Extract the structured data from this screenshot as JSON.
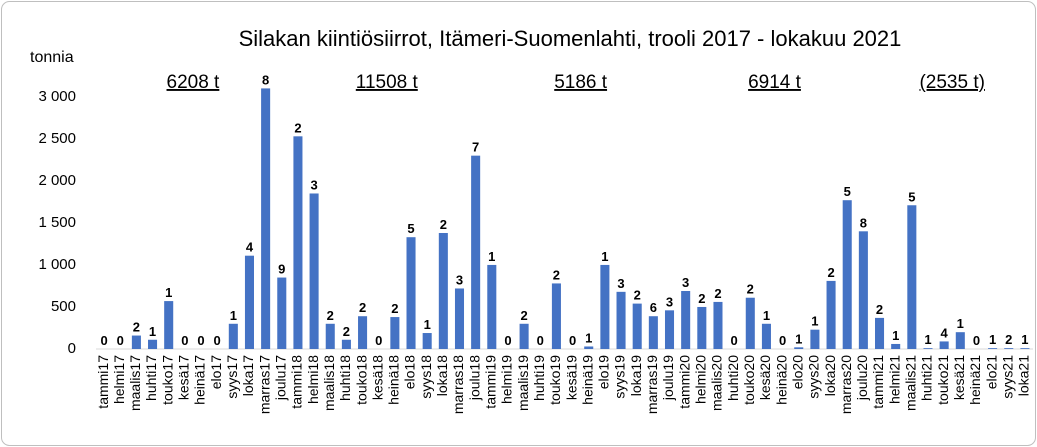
{
  "chart_data": {
    "type": "bar",
    "title": "Silakan kiintiösiirrot, Itämeri-Suomenlahti, trooli 2017 - lokakuu 2021",
    "y_label": "tonnia",
    "color": "#4472c4",
    "categories": [
      "tammi17",
      "helmi17",
      "maalis17",
      "huhti17",
      "touko17",
      "kesä17",
      "heinä17",
      "elo17",
      "syys17",
      "loka17",
      "marras17",
      "joulu17",
      "tammi18",
      "helmi18",
      "maalis18",
      "huhti18",
      "touko18",
      "kesä18",
      "heinä18",
      "elo18",
      "syys18",
      "loka18",
      "marras18",
      "joulu18",
      "tammi19",
      "helmi19",
      "maalis19",
      "huhti19",
      "touko19",
      "kesä19",
      "heinä19",
      "elo19",
      "syys19",
      "loka19",
      "marras19",
      "joulu19",
      "tammi20",
      "helmi20",
      "maalis20",
      "huhti20",
      "touko20",
      "kesä20",
      "heinä20",
      "elo20",
      "syys20",
      "loka20",
      "marras20",
      "joulu20",
      "tammi21",
      "helmi21",
      "maalis21",
      "huhti21",
      "touko21",
      "kesä21",
      "heinä21",
      "elo21",
      "syys21",
      "loka21"
    ],
    "values": [
      0,
      0,
      160,
      110,
      570,
      0,
      0,
      0,
      300,
      1110,
      3100,
      850,
      2530,
      1850,
      300,
      110,
      390,
      0,
      380,
      1330,
      190,
      1380,
      720,
      2300,
      1000,
      0,
      300,
      0,
      780,
      0,
      30,
      1000,
      680,
      540,
      390,
      460,
      690,
      500,
      560,
      0,
      610,
      300,
      0,
      20,
      230,
      810,
      1770,
      1400,
      370,
      60,
      1710,
      10,
      90,
      200,
      0,
      10,
      10,
      10
    ],
    "bar_labels": [
      0,
      0,
      2,
      1,
      1,
      0,
      0,
      0,
      1,
      4,
      8,
      9,
      2,
      3,
      2,
      2,
      2,
      0,
      2,
      5,
      1,
      2,
      3,
      7,
      1,
      0,
      2,
      0,
      2,
      0,
      1,
      1,
      3,
      2,
      6,
      3,
      3,
      2,
      2,
      0,
      2,
      1,
      0,
      1,
      1,
      2,
      5,
      8,
      2,
      1,
      5,
      1,
      4,
      1,
      0,
      1,
      2,
      1
    ],
    "annotations": [
      "6208 t",
      "11508 t",
      "5186 t",
      "6914 t",
      "(2535 t)"
    ],
    "ylim": [
      0,
      3200
    ],
    "yticks": [
      0,
      500,
      {
        "value": 1000,
        "label": "1 000"
      },
      {
        "value": 1500,
        "label": "1 500"
      },
      {
        "value": 2000,
        "label": "2 000"
      },
      {
        "value": 2500,
        "label": "2 500"
      },
      {
        "value": 3000,
        "label": "3 000"
      }
    ]
  }
}
